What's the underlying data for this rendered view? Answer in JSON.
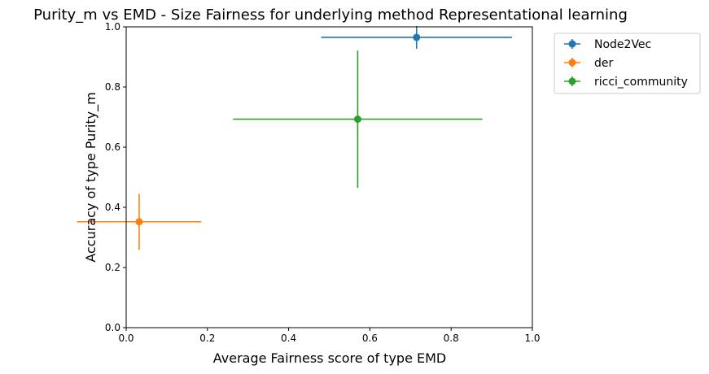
{
  "chart_data": {
    "type": "scatter",
    "title": "Purity_m vs EMD - Size Fairness for underlying method Representational learning",
    "xlabel": "Average Fairness score of type EMD",
    "ylabel": "Accuracy of type Purity_m",
    "xlim": [
      0,
      1
    ],
    "ylim": [
      0,
      1
    ],
    "xticks": [
      "0.0",
      "0.2",
      "0.4",
      "0.6",
      "0.8",
      "1.0"
    ],
    "yticks": [
      "0.0",
      "0.2",
      "0.4",
      "0.6",
      "0.8",
      "1.0"
    ],
    "grid": false,
    "legend_position": "outside-top-right",
    "series": [
      {
        "name": "Node2Vec",
        "color": "#1f77b4",
        "x": 0.715,
        "y": 0.965,
        "xerr": 0.235,
        "yerr": 0.038
      },
      {
        "name": "der",
        "color": "#ff7f0e",
        "x": 0.032,
        "y": 0.352,
        "xerr": 0.153,
        "yerr": 0.093
      },
      {
        "name": "ricci_community",
        "color": "#2ca02c",
        "x": 0.57,
        "y": 0.693,
        "xerr": 0.307,
        "yerr": 0.228
      }
    ]
  }
}
